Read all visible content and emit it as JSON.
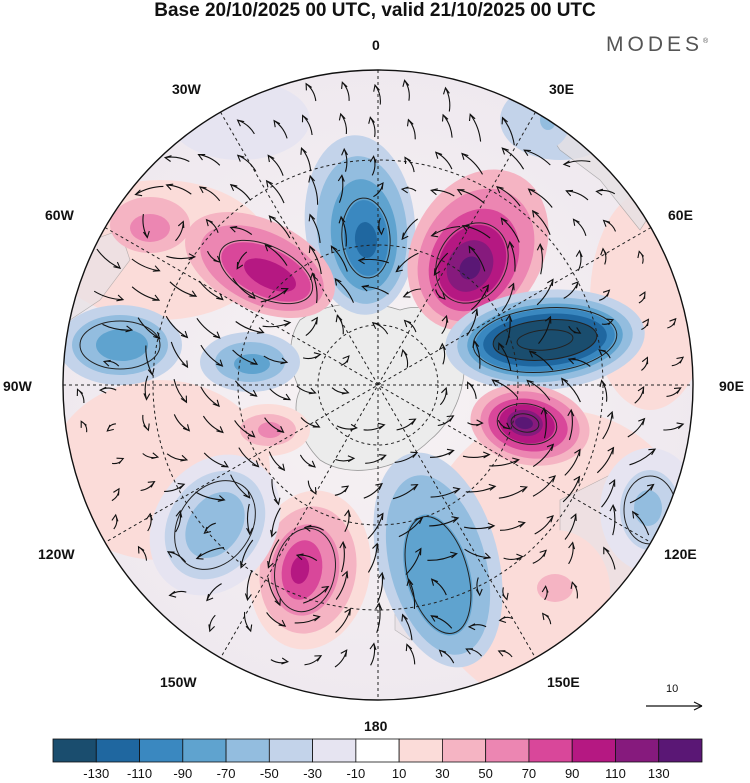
{
  "title": "Base 20/10/2025 00 UTC, valid 21/10/2025 00 UTC",
  "brand": "MODES",
  "brand_mark": "®",
  "longitude_labels": {
    "lon_0": "0",
    "lon_30e": "30E",
    "lon_60e": "60E",
    "lon_90e": "90E",
    "lon_120e": "120E",
    "lon_150e": "150E",
    "lon_180": "180",
    "lon_150w": "150W",
    "lon_120w": "120W",
    "lon_90w": "90W",
    "lon_60w": "60W",
    "lon_30w": "30W"
  },
  "reference_vector": {
    "label": "10"
  },
  "colorbar": {
    "levels": [
      "-130",
      "-110",
      "-90",
      "-70",
      "-50",
      "-30",
      "-10",
      "10",
      "30",
      "50",
      "70",
      "90",
      "110",
      "130"
    ],
    "colors": [
      "#1a4d6e",
      "#1f67a0",
      "#3a88c0",
      "#5fa3cf",
      "#93bddf",
      "#c3d3ea",
      "#e6e4f1",
      "#ffffff",
      "#fbdcd9",
      "#f5b4c3",
      "#ec86b2",
      "#d9479a",
      "#b51882",
      "#861a7d",
      "#5a1775"
    ]
  },
  "anomalies": [
    {
      "name": "low-north",
      "color": "#3a88c0"
    },
    {
      "name": "high-nne",
      "color": "#861a7d"
    },
    {
      "name": "low-east",
      "color": "#1a4d6e"
    },
    {
      "name": "high-ese",
      "color": "#861a7d"
    },
    {
      "name": "low-far-east",
      "color": "#93bddf"
    },
    {
      "name": "high-se",
      "color": "#f5b4c3"
    },
    {
      "name": "low-south",
      "color": "#5fa3cf"
    },
    {
      "name": "high-ssw",
      "color": "#d9479a"
    },
    {
      "name": "low-sw",
      "color": "#93bddf"
    },
    {
      "name": "high-wsw",
      "color": "#fbdcd9"
    },
    {
      "name": "high-small-west",
      "color": "#ec86b2"
    },
    {
      "name": "low-west",
      "color": "#5fa3cf"
    },
    {
      "name": "high-nw",
      "color": "#b51882"
    },
    {
      "name": "high-far-nw",
      "color": "#ec86b2"
    },
    {
      "name": "low-north-small",
      "color": "#c3d3ea"
    }
  ]
}
